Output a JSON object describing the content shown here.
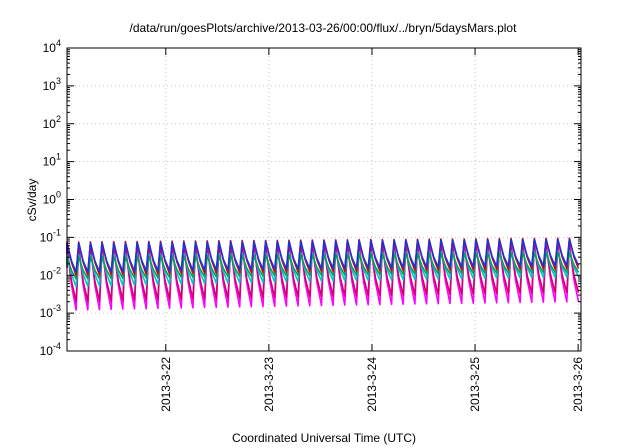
{
  "chart_data": {
    "type": "line",
    "title": "/data/run/goesPlots/archive/2013-03-26/00:00/flux/../bryn/5daysMars.plot",
    "xlabel": "Coordinated Universal Time (UTC)",
    "ylabel": "cSv/day",
    "yscale": "log",
    "ylim": [
      0.0001,
      10000
    ],
    "xlim": [
      "2013-03-21T01:00",
      "2013-03-26T00:40"
    ],
    "grid": true,
    "legend": "none",
    "x_ticks": [
      {
        "value": "2013-03-22T00:00",
        "label": "2013-3-22"
      },
      {
        "value": "2013-03-23T00:00",
        "label": "2013-3-23"
      },
      {
        "value": "2013-03-24T00:00",
        "label": "2013-3-24"
      },
      {
        "value": "2013-03-25T00:00",
        "label": "2013-3-25"
      },
      {
        "value": "2013-03-26T00:00",
        "label": "2013-3-26"
      }
    ],
    "y_ticks": [
      {
        "exp": 4,
        "base": "10",
        "sup": "4"
      },
      {
        "exp": 3,
        "base": "10",
        "sup": "3"
      },
      {
        "exp": 2,
        "base": "10",
        "sup": "2"
      },
      {
        "exp": 1,
        "base": "10",
        "sup": "1"
      },
      {
        "exp": 0,
        "base": "10",
        "sup": "0"
      },
      {
        "exp": -1,
        "base": "10",
        "sup": "-1"
      },
      {
        "exp": -2,
        "base": "10",
        "sup": "-2"
      },
      {
        "exp": -3,
        "base": "10",
        "sup": "-3"
      },
      {
        "exp": -4,
        "base": "10",
        "sup": "-4"
      }
    ],
    "cycle": {
      "first_peak": "2013-03-21T01:00",
      "period_hours": 2.72
    },
    "series": [
      {
        "color": "#ff00ff",
        "peak": [
          0.06,
          0.07
        ],
        "trough": [
          0.0012,
          0.002
        ]
      },
      {
        "color": "#d2006e",
        "peak": [
          0.05,
          0.06
        ],
        "trough": [
          0.002,
          0.0035
        ]
      },
      {
        "color": "#00c8c8",
        "peak": [
          0.035,
          0.045
        ],
        "trough": [
          0.005,
          0.009
        ]
      },
      {
        "color": "#00a060",
        "peak": [
          0.03,
          0.04
        ],
        "trough": [
          0.008,
          0.012
        ]
      },
      {
        "color": "#e00000",
        "peak": [
          0.075,
          0.095
        ],
        "trough": [
          0.01,
          0.015
        ]
      },
      {
        "color": "#1e32dc",
        "peak": [
          0.07,
          0.09
        ],
        "trough": [
          0.012,
          0.018
        ]
      }
    ]
  }
}
